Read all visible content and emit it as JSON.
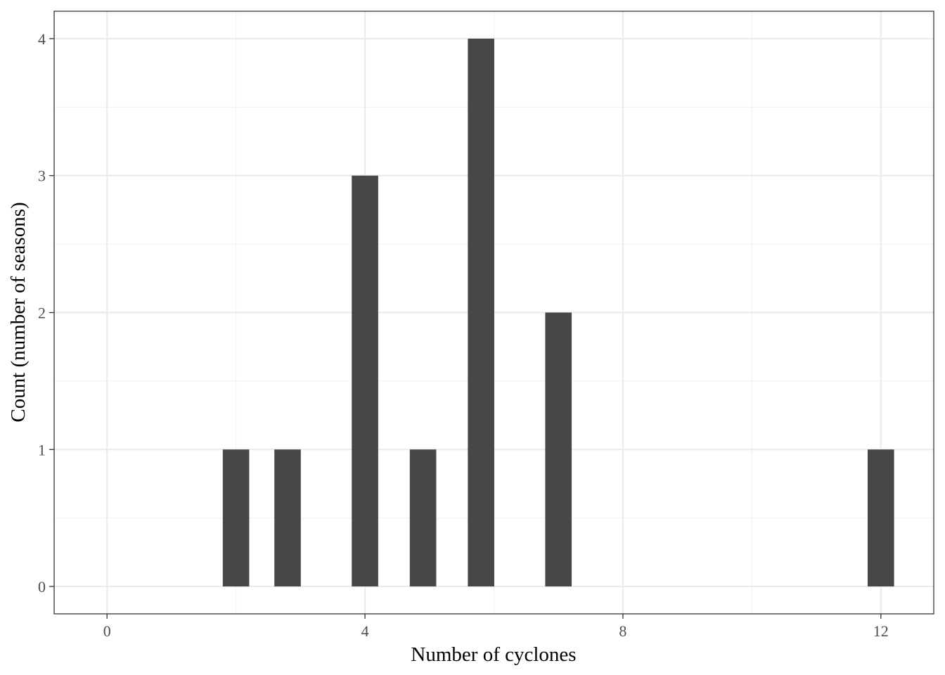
{
  "chart_data": {
    "type": "bar",
    "title": "",
    "xlabel": "Number of cyclones",
    "ylabel": "Count (number of seasons)",
    "x": [
      2.0,
      2.8,
      4.0,
      4.9,
      5.8,
      7.0,
      12.0
    ],
    "values": [
      1,
      1,
      3,
      1,
      4,
      2,
      1
    ],
    "bar_width": 0.41,
    "xlim": [
      -0.82,
      12.82
    ],
    "ylim": [
      -0.2,
      4.2
    ],
    "x_ticks": [
      0,
      4,
      8,
      12
    ],
    "x_tick_labels": [
      "0",
      "4",
      "8",
      "12"
    ],
    "y_ticks": [
      0,
      1,
      2,
      3,
      4
    ],
    "y_tick_labels": [
      "0",
      "1",
      "2",
      "3",
      "4"
    ],
    "x_minor_ticks": [
      2,
      6,
      10
    ],
    "y_minor_ticks": [
      0.5,
      1.5,
      2.5,
      3.5
    ],
    "grid": true,
    "legend": "none",
    "colors": {
      "bar": "#474747",
      "grid_major": "#ebebeb",
      "grid_minor": "#f2f2f2",
      "panel_border": "#333333",
      "tick_text": "#4d4d4d"
    }
  }
}
